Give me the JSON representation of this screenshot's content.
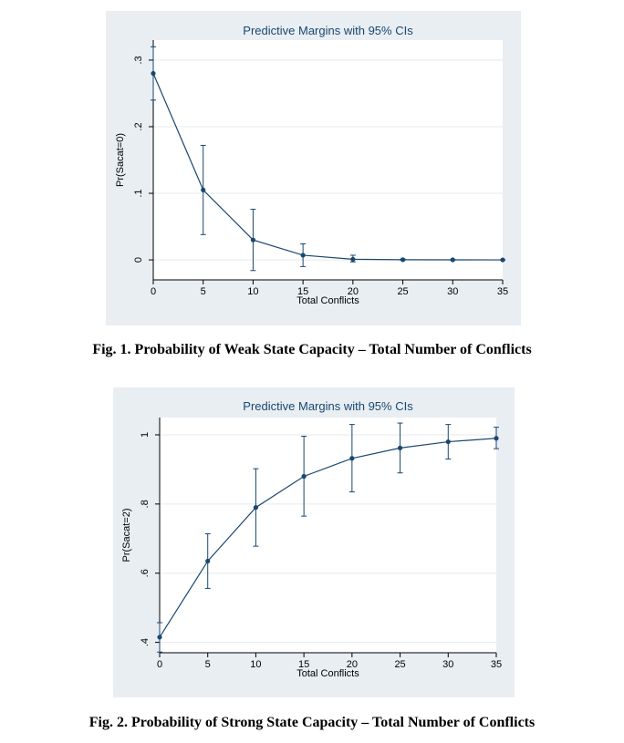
{
  "colors": {
    "panel_bg": "#e8eef2",
    "plot_bg": "#ffffff",
    "grid": "#e4eaee",
    "line": "#1a476f",
    "title": "#1a476f"
  },
  "captions": {
    "fig1": "Fig. 1. Probability of Weak State Capacity – Total Number of Conflicts",
    "fig2": "Fig. 2. Probability of Strong State Capacity – Total Number of Conflicts"
  },
  "chart_data": [
    {
      "type": "line",
      "title": "Predictive Margins with 95% CIs",
      "xlabel": "Total Conflicts",
      "ylabel": "Pr(Sacat=0)",
      "x": [
        0,
        5,
        10,
        15,
        20,
        25,
        30,
        35
      ],
      "y": [
        0.28,
        0.105,
        0.03,
        0.007,
        0.001,
        0.0003,
        0.0001,
        0.0
      ],
      "ci_low": [
        0.24,
        0.038,
        -0.016,
        -0.01,
        -0.003,
        -0.0005,
        -0.0002,
        -0.0001
      ],
      "ci_high": [
        0.32,
        0.172,
        0.076,
        0.024,
        0.007,
        0.0012,
        0.0004,
        0.0001
      ],
      "xticks": [
        0,
        5,
        10,
        15,
        20,
        25,
        30,
        35
      ],
      "xtick_labels": [
        "0",
        "5",
        "10",
        "15",
        "20",
        "25",
        "30",
        "35"
      ],
      "yticks": [
        0,
        0.1,
        0.2,
        0.3
      ],
      "ytick_labels": [
        "0",
        ".1",
        ".2",
        ".3"
      ],
      "xlim": [
        0,
        35
      ],
      "ylim": [
        -0.03,
        0.33
      ],
      "grid": true
    },
    {
      "type": "line",
      "title": "Predictive Margins with 95% CIs",
      "xlabel": "Total Conflicts",
      "ylabel": "Pr(Sacat=2)",
      "x": [
        0,
        5,
        10,
        15,
        20,
        25,
        30,
        35
      ],
      "y": [
        0.415,
        0.635,
        0.79,
        0.88,
        0.932,
        0.962,
        0.98,
        0.99
      ],
      "ci_low": [
        0.372,
        0.556,
        0.678,
        0.765,
        0.835,
        0.89,
        0.93,
        0.96
      ],
      "ci_high": [
        0.457,
        0.714,
        0.902,
        0.996,
        1.03,
        1.034,
        1.03,
        1.022
      ],
      "xticks": [
        0,
        5,
        10,
        15,
        20,
        25,
        30,
        35
      ],
      "xtick_labels": [
        "0",
        "5",
        "10",
        "15",
        "20",
        "25",
        "30",
        "35"
      ],
      "yticks": [
        0.4,
        0.6,
        0.8,
        1.0
      ],
      "ytick_labels": [
        ".4",
        ".6",
        ".8",
        "1"
      ],
      "xlim": [
        0,
        35
      ],
      "ylim": [
        0.37,
        1.05
      ],
      "grid": true
    }
  ]
}
